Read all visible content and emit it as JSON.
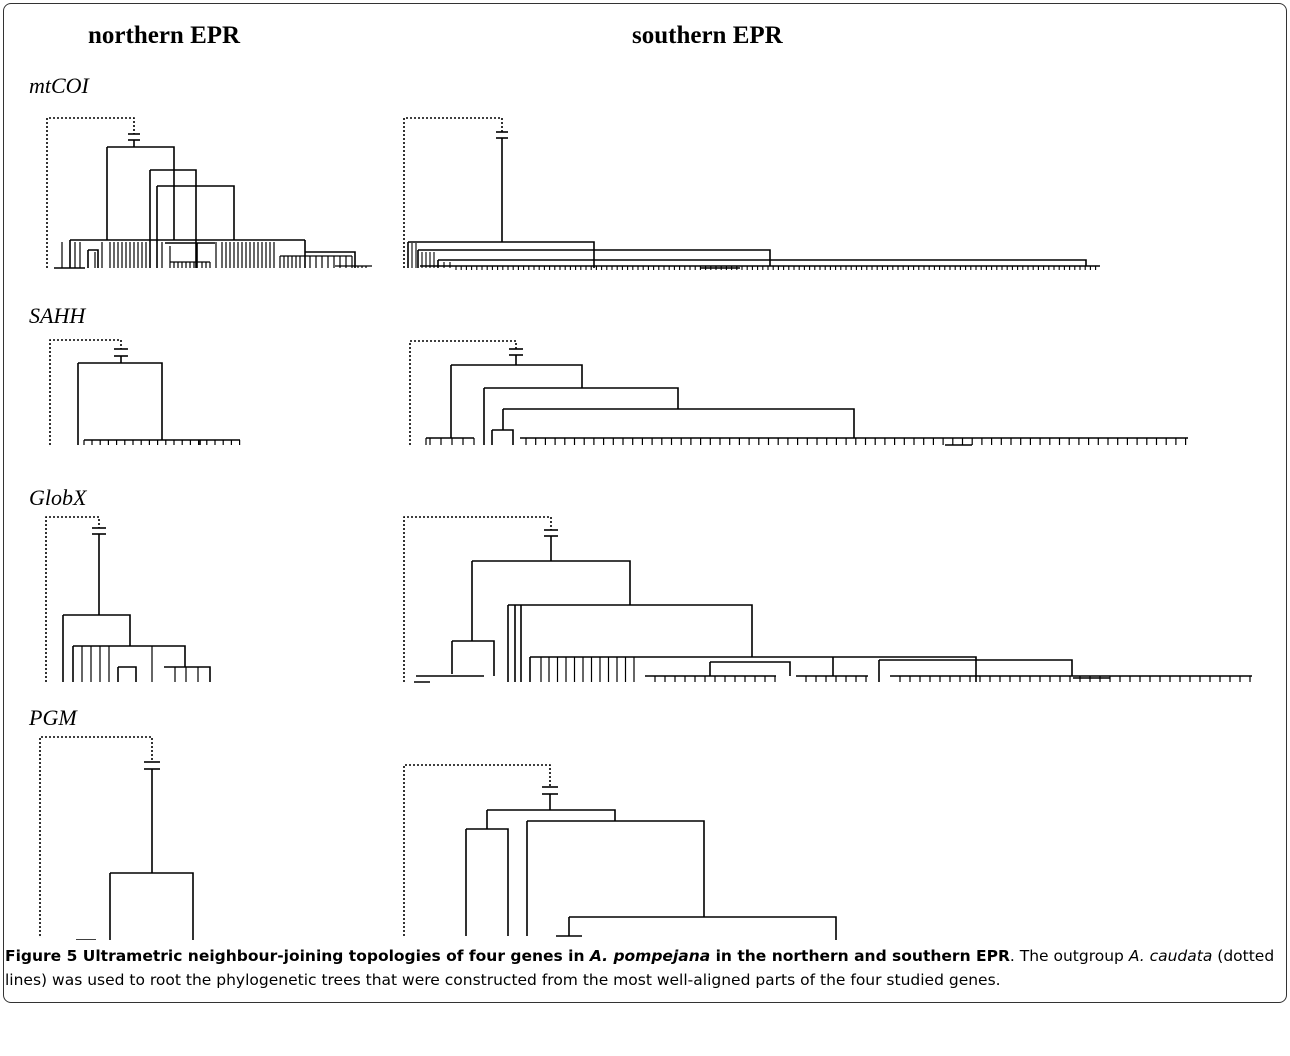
{
  "columns": {
    "north": "northern EPR",
    "south": "southern EPR"
  },
  "genes": [
    "mtCOI",
    "SAHH",
    "GlobX",
    "PGM"
  ],
  "caption": {
    "label": "Figure 5",
    "bold_title_1": " Ultrametric neighbour-joining topologies of four genes in ",
    "species_title": "A. pompejana",
    "bold_title_2": " in the northern and southern EPR",
    "text_1": ". The outgroup ",
    "outgroup": "A. caudata",
    "text_2": " (dotted lines) was used to root the phylogenetic trees that were constructed from the most well-aligned parts of the four studied genes."
  },
  "colors": {
    "line": "#000000",
    "frame": "#333333"
  }
}
